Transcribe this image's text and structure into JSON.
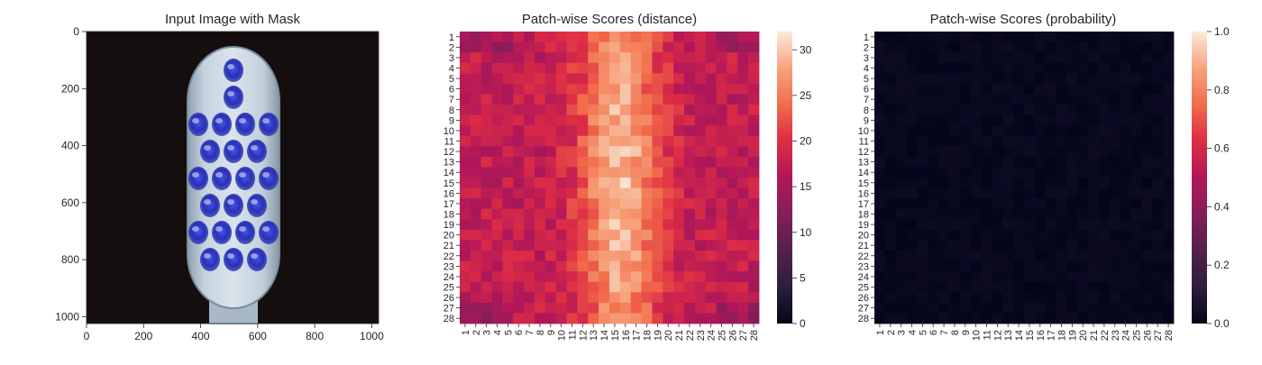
{
  "figure": {
    "panels": [
      {
        "title": "Input Image with Mask"
      },
      {
        "title": "Patch-wise Scores (distance)"
      },
      {
        "title": "Patch-wise Scores (probability)"
      }
    ]
  },
  "chart_data": [
    {
      "type": "image",
      "title": "Input Image with Mask",
      "xlabel": "",
      "ylabel": "",
      "xlim": [
        0,
        1024
      ],
      "ylim": [
        1024,
        0
      ],
      "xticks": [
        0,
        200,
        400,
        600,
        800,
        1000
      ],
      "yticks": [
        0,
        200,
        400,
        600,
        800,
        1000
      ],
      "content": "toothbrush head on black background with blue mask overlay on bristles",
      "colors": {
        "background": "#140e0e",
        "brush_body": "#b9c8d6",
        "mask": "#2d38c8"
      }
    },
    {
      "type": "heatmap",
      "title": "Patch-wise Scores (distance)",
      "x_categories": [
        "1",
        "2",
        "3",
        "4",
        "5",
        "6",
        "7",
        "8",
        "9",
        "10",
        "11",
        "12",
        "13",
        "14",
        "15",
        "16",
        "17",
        "18",
        "19",
        "20",
        "21",
        "22",
        "23",
        "24",
        "25",
        "26",
        "27",
        "28"
      ],
      "y_categories": [
        "1",
        "2",
        "3",
        "4",
        "5",
        "6",
        "7",
        "8",
        "9",
        "10",
        "11",
        "12",
        "13",
        "14",
        "15",
        "16",
        "17",
        "18",
        "19",
        "20",
        "21",
        "22",
        "23",
        "24",
        "25",
        "26",
        "27",
        "28"
      ],
      "colorbar": {
        "range": [
          0,
          32
        ],
        "ticks": [
          0,
          5,
          10,
          15,
          20,
          25,
          30
        ],
        "colormap": "rocket"
      },
      "value_summary": {
        "edges_min": 14,
        "edges_max": 22,
        "center_max": 31,
        "center_column_range": [
          12,
          18
        ]
      }
    },
    {
      "type": "heatmap",
      "title": "Patch-wise Scores (probability)",
      "x_categories": [
        "1",
        "2",
        "3",
        "4",
        "5",
        "6",
        "7",
        "8",
        "9",
        "10",
        "11",
        "12",
        "13",
        "14",
        "15",
        "16",
        "17",
        "18",
        "19",
        "20",
        "21",
        "22",
        "23",
        "24",
        "25",
        "26",
        "27",
        "28"
      ],
      "y_categories": [
        "1",
        "2",
        "3",
        "4",
        "5",
        "6",
        "7",
        "8",
        "9",
        "10",
        "11",
        "12",
        "13",
        "14",
        "15",
        "16",
        "17",
        "18",
        "19",
        "20",
        "21",
        "22",
        "23",
        "24",
        "25",
        "26",
        "27",
        "28"
      ],
      "colorbar": {
        "range": [
          0,
          1
        ],
        "ticks": [
          "0.0",
          "0.2",
          "0.4",
          "0.6",
          "0.8",
          "1.0"
        ],
        "colormap": "rocket"
      },
      "value_summary": {
        "min": 0.0,
        "max": 0.03
      }
    }
  ]
}
